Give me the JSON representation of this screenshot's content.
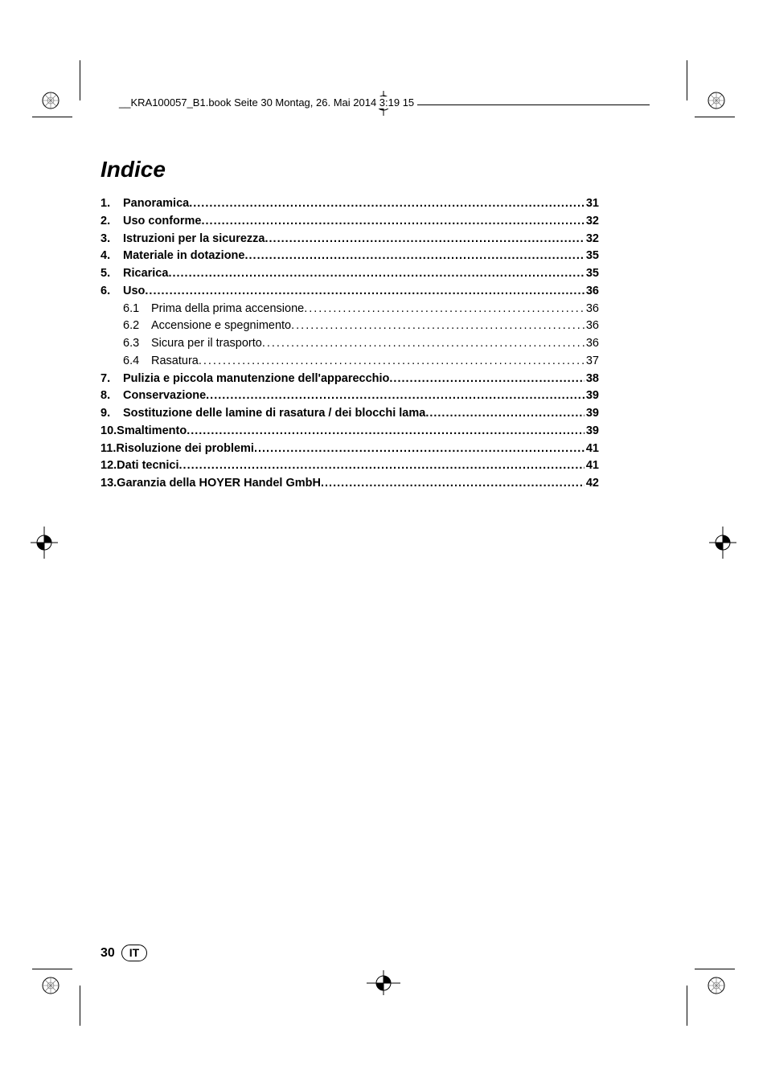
{
  "header": {
    "running_head": "__KRA100057_B1.book  Seite 30  Montag, 26. Mai 2014  3:19 15"
  },
  "title": "Indice",
  "toc": {
    "items": [
      {
        "num": "1.",
        "label": "Panoramica",
        "page": "31",
        "bold": true
      },
      {
        "num": "2.",
        "label": "Uso conforme",
        "page": "32",
        "bold": true
      },
      {
        "num": "3.",
        "label": "Istruzioni per la sicurezza",
        "page": "32",
        "bold": true
      },
      {
        "num": "4.",
        "label": "Materiale in dotazione",
        "page": "35",
        "bold": true
      },
      {
        "num": "5.",
        "label": "Ricarica",
        "page": "35",
        "bold": true
      },
      {
        "num": "6.",
        "label": "Uso",
        "page": "36",
        "bold": true
      },
      {
        "sub": "6.1",
        "label": "Prima della prima accensione",
        "page": "36",
        "bold": false
      },
      {
        "sub": "6.2",
        "label": "Accensione e spegnimento",
        "page": "36",
        "bold": false
      },
      {
        "sub": "6.3",
        "label": "Sicura per il trasporto",
        "page": "36",
        "bold": false
      },
      {
        "sub": "6.4",
        "label": "Rasatura",
        "page": "37",
        "bold": false
      },
      {
        "num": "7.",
        "label": "Pulizia e piccola manutenzione dell'apparecchio",
        "page": "38",
        "bold": true
      },
      {
        "num": "8.",
        "label": "Conservazione",
        "page": "39",
        "bold": true
      },
      {
        "num": "9.",
        "label": "Sostituzione delle lamine di rasatura / dei blocchi lama",
        "page": "39",
        "bold": true
      },
      {
        "num": "10.",
        "label": "Smaltimento",
        "page": "39",
        "bold": true,
        "nogap": true
      },
      {
        "num": "11.",
        "label": "Risoluzione dei problemi",
        "page": "41",
        "bold": true,
        "nogap": true
      },
      {
        "num": "12.",
        "label": "Dati tecnici",
        "page": "41",
        "bold": true,
        "nogap": true
      },
      {
        "num": "13.",
        "label": "Garanzia della HOYER Handel GmbH",
        "page": "42",
        "bold": true,
        "nogap": true
      }
    ]
  },
  "footer": {
    "page_number": "30",
    "lang": "IT"
  },
  "style": {
    "page_bg": "#ffffff",
    "text_color": "#000000",
    "title_fontsize_pt": 21,
    "body_fontsize_pt": 11,
    "line_height": 1.5
  }
}
